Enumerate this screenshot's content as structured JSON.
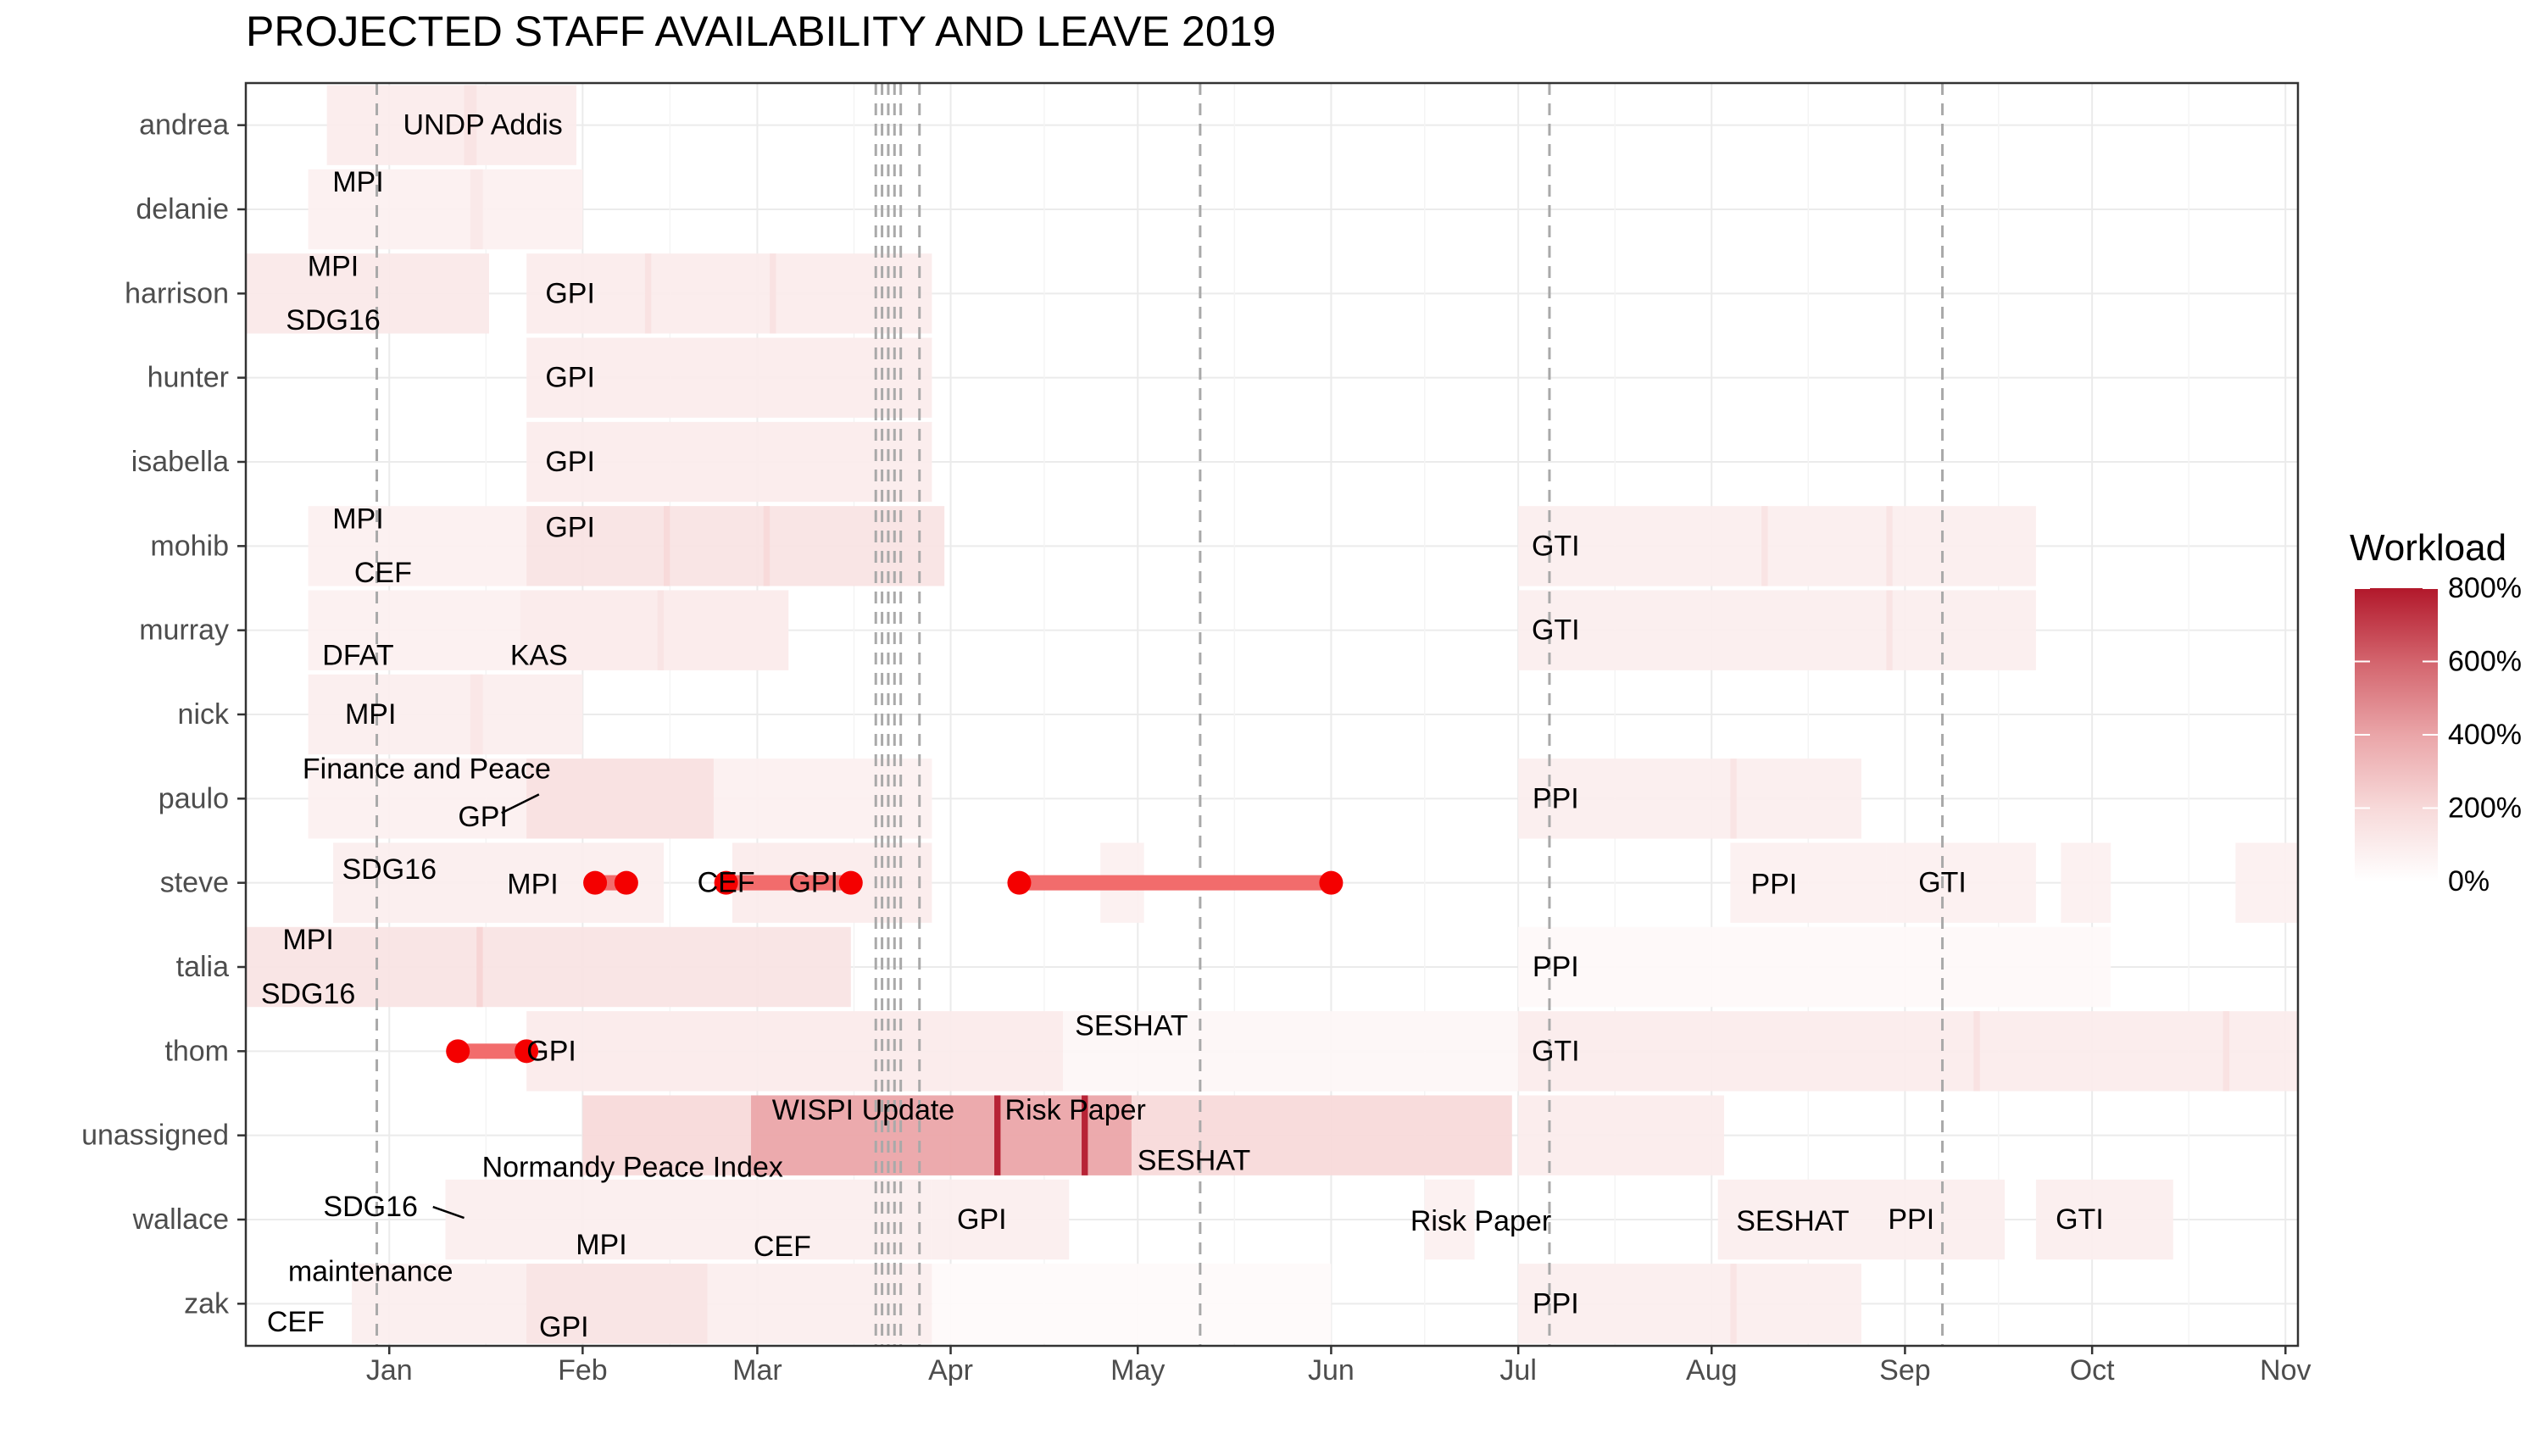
{
  "chart_data": {
    "type": "heatmap",
    "title": "PROJECTED STAFF AVAILABILITY AND LEAVE 2019",
    "xlabel": "",
    "ylabel": "",
    "xlim": [
      "2018-12-09",
      "2019-11-03"
    ],
    "x_ticks": [
      {
        "date": "2019-01-01",
        "label": "Jan"
      },
      {
        "date": "2019-02-01",
        "label": "Feb"
      },
      {
        "date": "2019-03-01",
        "label": "Mar"
      },
      {
        "date": "2019-04-01",
        "label": "Apr"
      },
      {
        "date": "2019-05-01",
        "label": "May"
      },
      {
        "date": "2019-06-01",
        "label": "Jun"
      },
      {
        "date": "2019-07-01",
        "label": "Jul"
      },
      {
        "date": "2019-08-01",
        "label": "Aug"
      },
      {
        "date": "2019-09-01",
        "label": "Sep"
      },
      {
        "date": "2019-10-01",
        "label": "Oct"
      },
      {
        "date": "2019-11-01",
        "label": "Nov"
      }
    ],
    "staff": [
      "andrea",
      "delanie",
      "harrison",
      "hunter",
      "isabella",
      "mohib",
      "murray",
      "nick",
      "paulo",
      "steve",
      "talia",
      "thom",
      "unassigned",
      "wallace",
      "zak"
    ],
    "vlines": [
      "2018-12-30",
      "2019-03-20",
      "2019-03-21",
      "2019-03-22",
      "2019-03-23",
      "2019-03-24",
      "2019-03-27",
      "2019-05-11",
      "2019-07-06",
      "2019-09-07"
    ],
    "legend": {
      "title": "Workload",
      "ticks": [
        "0%",
        "200%",
        "400%",
        "600%",
        "800%"
      ],
      "max": 8,
      "low_color": "#ffffff",
      "high_color": "#b2182b"
    },
    "workload_bars": [
      {
        "staff": "andrea",
        "start": "2018-12-22",
        "end": "2019-01-31",
        "level": 1.0
      },
      {
        "staff": "andrea",
        "start": "2019-01-13",
        "end": "2019-01-15",
        "level": 1.5
      },
      {
        "staff": "delanie",
        "start": "2018-12-19",
        "end": "2019-02-01",
        "level": 0.8
      },
      {
        "staff": "delanie",
        "start": "2019-01-14",
        "end": "2019-01-16",
        "level": 1.2
      },
      {
        "staff": "harrison",
        "start": "2018-12-09",
        "end": "2019-01-17",
        "level": 1.2
      },
      {
        "staff": "harrison",
        "start": "2019-01-23",
        "end": "2019-03-29",
        "level": 1.0
      },
      {
        "staff": "harrison",
        "start": "2019-02-11",
        "end": "2019-02-12",
        "level": 1.6
      },
      {
        "staff": "harrison",
        "start": "2019-03-03",
        "end": "2019-03-04",
        "level": 1.6
      },
      {
        "staff": "hunter",
        "start": "2019-01-23",
        "end": "2019-03-29",
        "level": 1.0
      },
      {
        "staff": "isabella",
        "start": "2019-01-23",
        "end": "2019-03-29",
        "level": 1.0
      },
      {
        "staff": "mohib",
        "start": "2018-12-19",
        "end": "2019-01-23",
        "level": 0.8
      },
      {
        "staff": "mohib",
        "start": "2019-01-23",
        "end": "2019-03-31",
        "level": 1.5
      },
      {
        "staff": "mohib",
        "start": "2019-02-14",
        "end": "2019-02-15",
        "level": 2.0
      },
      {
        "staff": "mohib",
        "start": "2019-03-02",
        "end": "2019-03-03",
        "level": 2.0
      },
      {
        "staff": "mohib",
        "start": "2019-07-01",
        "end": "2019-09-22",
        "level": 0.9
      },
      {
        "staff": "mohib",
        "start": "2019-08-09",
        "end": "2019-08-10",
        "level": 1.5
      },
      {
        "staff": "mohib",
        "start": "2019-08-29",
        "end": "2019-08-30",
        "level": 1.5
      },
      {
        "staff": "murray",
        "start": "2018-12-19",
        "end": "2019-03-06",
        "level": 0.8
      },
      {
        "staff": "murray",
        "start": "2019-01-22",
        "end": "2019-03-06",
        "level": 1.0
      },
      {
        "staff": "murray",
        "start": "2019-02-13",
        "end": "2019-02-14",
        "level": 1.5
      },
      {
        "staff": "murray",
        "start": "2019-07-01",
        "end": "2019-09-22",
        "level": 0.9
      },
      {
        "staff": "murray",
        "start": "2019-08-29",
        "end": "2019-08-30",
        "level": 1.5
      },
      {
        "staff": "nick",
        "start": "2018-12-19",
        "end": "2019-02-01",
        "level": 0.9
      },
      {
        "staff": "nick",
        "start": "2019-01-14",
        "end": "2019-01-16",
        "level": 1.3
      },
      {
        "staff": "paulo",
        "start": "2018-12-19",
        "end": "2019-03-29",
        "level": 0.8
      },
      {
        "staff": "paulo",
        "start": "2019-01-23",
        "end": "2019-02-22",
        "level": 1.6
      },
      {
        "staff": "paulo",
        "start": "2019-07-01",
        "end": "2019-08-25",
        "level": 0.9
      },
      {
        "staff": "paulo",
        "start": "2019-08-04",
        "end": "2019-08-05",
        "level": 1.5
      },
      {
        "staff": "steve",
        "start": "2018-12-23",
        "end": "2019-02-14",
        "level": 0.9
      },
      {
        "staff": "steve",
        "start": "2019-02-25",
        "end": "2019-03-29",
        "level": 1.0
      },
      {
        "staff": "steve",
        "start": "2019-04-25",
        "end": "2019-05-02",
        "level": 0.8
      },
      {
        "staff": "steve",
        "start": "2019-08-04",
        "end": "2019-08-29",
        "level": 0.8
      },
      {
        "staff": "steve",
        "start": "2019-08-29",
        "end": "2019-09-22",
        "level": 0.8
      },
      {
        "staff": "steve",
        "start": "2019-09-26",
        "end": "2019-10-04",
        "level": 0.8
      },
      {
        "staff": "steve",
        "start": "2019-10-24",
        "end": "2019-11-03",
        "level": 0.8
      },
      {
        "staff": "talia",
        "start": "2018-12-09",
        "end": "2019-03-16",
        "level": 1.5
      },
      {
        "staff": "talia",
        "start": "2019-01-15",
        "end": "2019-01-16",
        "level": 2.2
      },
      {
        "staff": "talia",
        "start": "2019-07-01",
        "end": "2019-10-04",
        "level": 0.3
      },
      {
        "staff": "thom",
        "start": "2019-01-23",
        "end": "2019-04-19",
        "level": 1.1
      },
      {
        "staff": "thom",
        "start": "2019-04-19",
        "end": "2019-07-01",
        "level": 0.5
      },
      {
        "staff": "thom",
        "start": "2019-07-01",
        "end": "2019-11-03",
        "level": 1.0
      },
      {
        "staff": "thom",
        "start": "2019-09-12",
        "end": "2019-09-13",
        "level": 1.6
      },
      {
        "staff": "thom",
        "start": "2019-10-22",
        "end": "2019-10-23",
        "level": 1.6
      },
      {
        "staff": "unassigned",
        "start": "2019-02-01",
        "end": "2019-06-30",
        "level": 2.0
      },
      {
        "staff": "unassigned",
        "start": "2019-02-28",
        "end": "2019-04-30",
        "level": 4.0
      },
      {
        "staff": "unassigned",
        "start": "2019-04-08",
        "end": "2019-04-09",
        "level": 8.0
      },
      {
        "staff": "unassigned",
        "start": "2019-04-22",
        "end": "2019-04-23",
        "level": 8.0
      },
      {
        "staff": "unassigned",
        "start": "2019-07-01",
        "end": "2019-08-03",
        "level": 1.0
      },
      {
        "staff": "wallace",
        "start": "2019-01-10",
        "end": "2019-03-29",
        "level": 0.9
      },
      {
        "staff": "wallace",
        "start": "2019-03-29",
        "end": "2019-04-20",
        "level": 0.9
      },
      {
        "staff": "wallace",
        "start": "2019-06-16",
        "end": "2019-06-24",
        "level": 0.8
      },
      {
        "staff": "wallace",
        "start": "2019-08-02",
        "end": "2019-08-25",
        "level": 0.9
      },
      {
        "staff": "wallace",
        "start": "2019-08-25",
        "end": "2019-09-17",
        "level": 0.9
      },
      {
        "staff": "wallace",
        "start": "2019-09-22",
        "end": "2019-10-14",
        "level": 0.9
      },
      {
        "staff": "zak",
        "start": "2018-12-26",
        "end": "2019-03-29",
        "level": 0.9
      },
      {
        "staff": "zak",
        "start": "2019-01-23",
        "end": "2019-02-21",
        "level": 1.4
      },
      {
        "staff": "zak",
        "start": "2019-03-29",
        "end": "2019-06-01",
        "level": 0.25
      },
      {
        "staff": "zak",
        "start": "2019-07-01",
        "end": "2019-08-25",
        "level": 0.9
      },
      {
        "staff": "zak",
        "start": "2019-08-04",
        "end": "2019-08-05",
        "level": 1.5
      }
    ],
    "leave_segments": [
      {
        "staff": "steve",
        "start": "2019-02-03",
        "end": "2019-02-08"
      },
      {
        "staff": "steve",
        "start": "2019-02-24",
        "end": "2019-03-16"
      },
      {
        "staff": "steve",
        "start": "2019-04-12",
        "end": "2019-06-01"
      },
      {
        "staff": "thom",
        "start": "2019-01-12",
        "end": "2019-01-23"
      }
    ],
    "annotations": [
      {
        "staff": "andrea",
        "date": "2019-01-16",
        "dy": 0,
        "text": "UNDP Addis"
      },
      {
        "staff": "delanie",
        "date": "2018-12-27",
        "dy": -0.32,
        "text": "MPI"
      },
      {
        "staff": "harrison",
        "date": "2018-12-23",
        "dy": -0.32,
        "text": "MPI"
      },
      {
        "staff": "harrison",
        "date": "2018-12-23",
        "dy": 0.32,
        "text": "SDG16"
      },
      {
        "staff": "harrison",
        "date": "2019-01-30",
        "dy": 0,
        "text": "GPI"
      },
      {
        "staff": "hunter",
        "date": "2019-01-30",
        "dy": 0,
        "text": "GPI"
      },
      {
        "staff": "isabella",
        "date": "2019-01-30",
        "dy": 0,
        "text": "GPI"
      },
      {
        "staff": "mohib",
        "date": "2018-12-27",
        "dy": -0.32,
        "text": "MPI"
      },
      {
        "staff": "mohib",
        "date": "2019-01-30",
        "dy": -0.22,
        "text": "GPI"
      },
      {
        "staff": "mohib",
        "date": "2018-12-31",
        "dy": 0.32,
        "text": "CEF"
      },
      {
        "staff": "mohib",
        "date": "2019-07-07",
        "dy": 0,
        "text": "GTI"
      },
      {
        "staff": "murray",
        "date": "2018-12-27",
        "dy": 0.3,
        "text": "DFAT"
      },
      {
        "staff": "murray",
        "date": "2019-01-25",
        "dy": 0.3,
        "text": "KAS"
      },
      {
        "staff": "murray",
        "date": "2019-07-07",
        "dy": 0,
        "text": "GTI"
      },
      {
        "staff": "nick",
        "date": "2018-12-29",
        "dy": 0,
        "text": "MPI"
      },
      {
        "staff": "paulo",
        "date": "2019-01-07",
        "dy": -0.35,
        "text": "Finance and Peace"
      },
      {
        "staff": "paulo",
        "date": "2019-01-16",
        "dy": 0.22,
        "text": "GPI"
      },
      {
        "staff": "paulo",
        "date": "2019-07-07",
        "dy": 0,
        "text": "PPI"
      },
      {
        "staff": "steve",
        "date": "2019-01-01",
        "dy": -0.16,
        "text": "SDG16"
      },
      {
        "staff": "steve",
        "date": "2019-01-24",
        "dy": 0.02,
        "text": "MPI"
      },
      {
        "staff": "steve",
        "date": "2019-02-24",
        "dy": 0,
        "text": "CEF"
      },
      {
        "staff": "steve",
        "date": "2019-03-10",
        "dy": 0,
        "text": "GPI"
      },
      {
        "staff": "steve",
        "date": "2019-08-11",
        "dy": 0.02,
        "text": "PPI"
      },
      {
        "staff": "steve",
        "date": "2019-09-07",
        "dy": 0,
        "text": "GTI"
      },
      {
        "staff": "talia",
        "date": "2018-12-19",
        "dy": -0.32,
        "text": "MPI"
      },
      {
        "staff": "talia",
        "date": "2018-12-19",
        "dy": 0.32,
        "text": "SDG16"
      },
      {
        "staff": "talia",
        "date": "2019-07-07",
        "dy": 0,
        "text": "PPI"
      },
      {
        "staff": "thom",
        "date": "2019-01-27",
        "dy": 0,
        "text": "GPI"
      },
      {
        "staff": "thom",
        "date": "2019-04-30",
        "dy": -0.3,
        "text": "SESHAT"
      },
      {
        "staff": "thom",
        "date": "2019-07-07",
        "dy": 0,
        "text": "GTI"
      },
      {
        "staff": "unassigned",
        "date": "2019-03-18",
        "dy": -0.3,
        "text": "WISPI Update"
      },
      {
        "staff": "unassigned",
        "date": "2019-04-21",
        "dy": -0.3,
        "text": "Risk Paper"
      },
      {
        "staff": "unassigned",
        "date": "2019-05-10",
        "dy": 0.3,
        "text": "SESHAT"
      },
      {
        "staff": "wallace",
        "date": "2019-02-09",
        "dy": -0.62,
        "text": "Normandy Peace Index"
      },
      {
        "staff": "wallace",
        "date": "2018-12-29",
        "dy": -0.15,
        "text": "SDG16"
      },
      {
        "staff": "wallace",
        "date": "2019-02-04",
        "dy": 0.3,
        "text": "MPI"
      },
      {
        "staff": "wallace",
        "date": "2019-03-05",
        "dy": 0.32,
        "text": "CEF"
      },
      {
        "staff": "wallace",
        "date": "2019-04-06",
        "dy": 0,
        "text": "GPI"
      },
      {
        "staff": "wallace",
        "date": "2019-06-25",
        "dy": 0.02,
        "text": "Risk Paper"
      },
      {
        "staff": "wallace",
        "date": "2019-08-14",
        "dy": 0.02,
        "text": "SESHAT"
      },
      {
        "staff": "wallace",
        "date": "2019-09-02",
        "dy": 0,
        "text": "PPI"
      },
      {
        "staff": "wallace",
        "date": "2019-09-29",
        "dy": 0,
        "text": "GTI"
      },
      {
        "staff": "zak",
        "date": "2018-12-29",
        "dy": -0.38,
        "text": "maintenance"
      },
      {
        "staff": "zak",
        "date": "2018-12-17",
        "dy": 0.22,
        "text": "CEF"
      },
      {
        "staff": "zak",
        "date": "2019-01-29",
        "dy": 0.28,
        "text": "GPI"
      },
      {
        "staff": "zak",
        "date": "2019-07-07",
        "dy": 0,
        "text": "PPI"
      }
    ],
    "leader_lines": [
      {
        "staff": "paulo",
        "x1": "2019-01-19",
        "dy1": 0.17,
        "x2": "2019-01-25",
        "dy2": -0.05
      },
      {
        "staff": "wallace",
        "x1": "2019-01-08",
        "dy1": -0.15,
        "x2": "2019-01-13",
        "dy2": -0.02
      }
    ],
    "grid": true,
    "legend_position": "right"
  }
}
